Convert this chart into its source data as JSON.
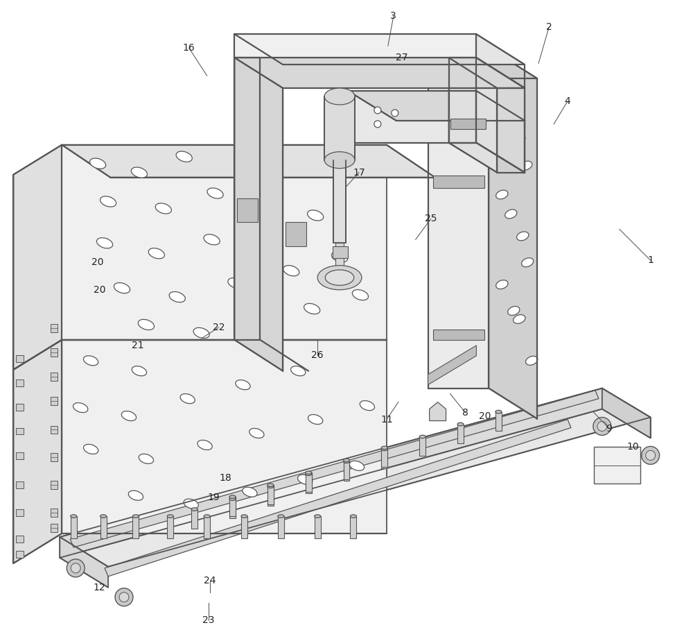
{
  "bg_color": "#ffffff",
  "line_color": "#555555",
  "lw": 1.3,
  "lw_thick": 1.6,
  "fc_front": "#f0f0f0",
  "fc_top": "#e2e2e2",
  "fc_right": "#d5d5d5",
  "fc_panel": "#e8e8e8",
  "fc_panel_right": "#d8d8d8",
  "hole_fc": "#ffffff",
  "figure_width": 10.0,
  "figure_height": 9.11,
  "dpi": 100,
  "labels": [
    [
      "1",
      940,
      375
    ],
    [
      "2",
      793,
      38
    ],
    [
      "3",
      568,
      22
    ],
    [
      "4",
      820,
      145
    ],
    [
      "8",
      672,
      595
    ],
    [
      "9",
      880,
      618
    ],
    [
      "10",
      915,
      645
    ],
    [
      "11",
      558,
      605
    ],
    [
      "12",
      142,
      848
    ],
    [
      "16",
      272,
      68
    ],
    [
      "17",
      518,
      248
    ],
    [
      "18",
      325,
      690
    ],
    [
      "19",
      308,
      718
    ],
    [
      "20",
      140,
      378
    ],
    [
      "20",
      143,
      418
    ],
    [
      "20",
      700,
      600
    ],
    [
      "21",
      198,
      498
    ],
    [
      "22",
      315,
      472
    ],
    [
      "23",
      300,
      895
    ],
    [
      "24",
      302,
      838
    ],
    [
      "25",
      622,
      315
    ],
    [
      "26",
      458,
      512
    ],
    [
      "27",
      580,
      82
    ]
  ],
  "leader_lines": [
    [
      940,
      375,
      895,
      330
    ],
    [
      793,
      38,
      778,
      90
    ],
    [
      568,
      22,
      560,
      65
    ],
    [
      820,
      145,
      800,
      178
    ],
    [
      672,
      595,
      650,
      568
    ],
    [
      880,
      618,
      858,
      595
    ],
    [
      558,
      605,
      575,
      580
    ],
    [
      272,
      68,
      298,
      108
    ],
    [
      518,
      248,
      500,
      268
    ],
    [
      622,
      315,
      600,
      345
    ],
    [
      315,
      472,
      290,
      488
    ],
    [
      300,
      895,
      300,
      870
    ],
    [
      302,
      838,
      302,
      855
    ],
    [
      458,
      512,
      458,
      490
    ]
  ]
}
